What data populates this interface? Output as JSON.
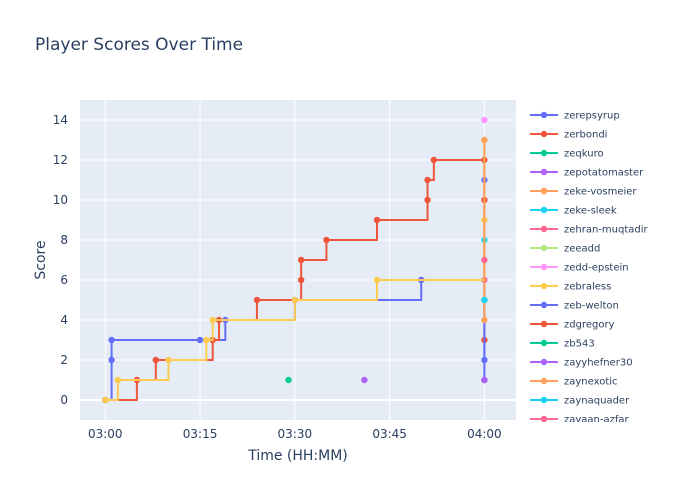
{
  "chart_data": {
    "type": "line",
    "title": "Player Scores Over Time",
    "xlabel": "Time (HH:MM)",
    "ylabel": "Score",
    "x_ticks": [
      "03:00",
      "03:15",
      "03:30",
      "03:45",
      "04:00"
    ],
    "y_ticks": [
      0,
      2,
      4,
      6,
      8,
      10,
      12,
      14
    ],
    "xlim": [
      "02:56",
      "04:05"
    ],
    "ylim": [
      -1,
      15
    ],
    "line_shape": "step",
    "grid": true,
    "legend_position": "right",
    "series": [
      {
        "name": "zerepsyrup",
        "color": "#636efa",
        "points": [
          [
            "03:00",
            0
          ],
          [
            "03:01",
            2
          ],
          [
            "03:01",
            3
          ],
          [
            "03:15",
            3
          ],
          [
            "03:19",
            4
          ],
          [
            "03:30",
            5
          ],
          [
            "03:50",
            6
          ],
          [
            "04:00",
            1
          ],
          [
            "04:00",
            11
          ]
        ]
      },
      {
        "name": "zerbondi",
        "color": "#EF553B",
        "points": [
          [
            "03:00",
            0
          ],
          [
            "03:05",
            1
          ],
          [
            "03:08",
            2
          ],
          [
            "03:17",
            3
          ],
          [
            "03:18",
            4
          ],
          [
            "03:24",
            5
          ],
          [
            "03:31",
            6
          ],
          [
            "03:31",
            7
          ],
          [
            "03:35",
            8
          ],
          [
            "03:43",
            9
          ],
          [
            "03:51",
            10
          ],
          [
            "03:51",
            11
          ],
          [
            "03:52",
            12
          ],
          [
            "04:00",
            3
          ],
          [
            "04:00",
            12
          ]
        ]
      },
      {
        "name": "zeqkuro",
        "color": "#00cc96",
        "points": [
          [
            "03:29",
            1
          ]
        ]
      },
      {
        "name": "zepotatomaster",
        "color": "#ab63fa",
        "points": [
          [
            "03:41",
            1
          ]
        ]
      },
      {
        "name": "zeke-vosmeier",
        "color": "#FFA15A",
        "points": []
      },
      {
        "name": "zeke-sleek",
        "color": "#19d3f3",
        "points": [
          [
            "04:00",
            8
          ]
        ]
      },
      {
        "name": "zehran-muqtadir",
        "color": "#FF6692",
        "points": [
          [
            "04:00",
            6
          ]
        ]
      },
      {
        "name": "zeeadd",
        "color": "#B6E880",
        "points": [
          [
            "04:00",
            9
          ]
        ]
      },
      {
        "name": "zedd-epstein",
        "color": "#FF97FF",
        "points": [
          [
            "04:00",
            14
          ]
        ]
      },
      {
        "name": "zebraless",
        "color": "#FECB52",
        "points": [
          [
            "03:00",
            0
          ],
          [
            "03:02",
            1
          ],
          [
            "03:10",
            2
          ],
          [
            "03:16",
            3
          ],
          [
            "03:17",
            4
          ],
          [
            "03:30",
            5
          ],
          [
            "03:43",
            6
          ],
          [
            "04:00",
            9
          ],
          [
            "04:00",
            13
          ]
        ]
      },
      {
        "name": "zeb-welton",
        "color": "#636efa",
        "points": [
          [
            "04:00",
            2
          ],
          [
            "04:00",
            5
          ]
        ]
      },
      {
        "name": "zdgregory",
        "color": "#EF553B",
        "points": [
          [
            "04:00",
            10
          ]
        ]
      },
      {
        "name": "zb543",
        "color": "#00cc96",
        "points": []
      },
      {
        "name": "zayyhefner30",
        "color": "#ab63fa",
        "points": [
          [
            "04:00",
            1
          ]
        ]
      },
      {
        "name": "zaynexotic",
        "color": "#FFA15A",
        "points": [
          [
            "04:00",
            4
          ],
          [
            "04:00",
            13
          ]
        ]
      },
      {
        "name": "zaynaquader",
        "color": "#19d3f3",
        "points": [
          [
            "04:00",
            5
          ]
        ]
      },
      {
        "name": "zayaan-azfar",
        "color": "#FF6692",
        "points": [
          [
            "04:00",
            7
          ]
        ]
      }
    ]
  }
}
